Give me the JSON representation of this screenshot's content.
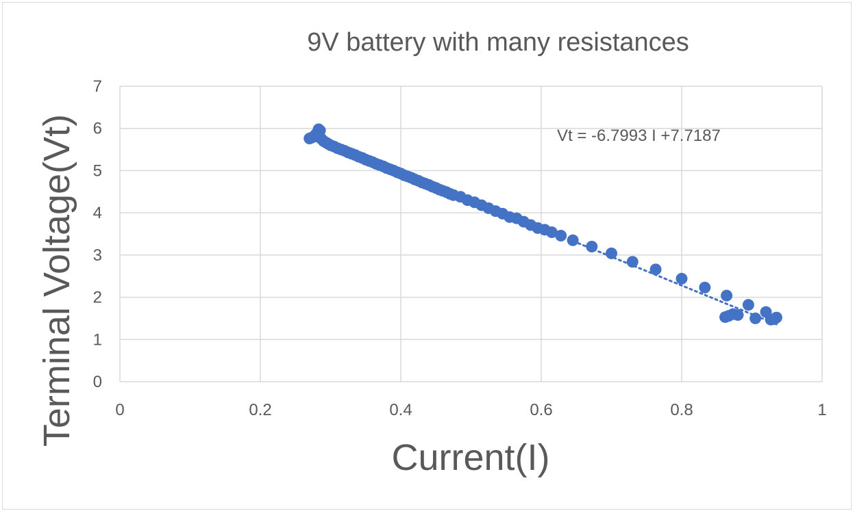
{
  "chart_data": {
    "type": "scatter",
    "title": "9V battery with many resistances",
    "xlabel": "Current(I)",
    "ylabel": "Terminal Voltage(Vt)",
    "xlim": [
      0,
      1
    ],
    "ylim": [
      0,
      7
    ],
    "x_ticks": [
      "0",
      "0.2",
      "0.4",
      "0.6",
      "0.8",
      "1"
    ],
    "y_ticks": [
      "0",
      "1",
      "2",
      "3",
      "4",
      "5",
      "6",
      "7"
    ],
    "grid": true,
    "legend": "none",
    "marker_color": "#4472c4",
    "trendline": {
      "type": "linear",
      "style": "dotted",
      "slope": -6.7993,
      "intercept": 7.7187,
      "x_range": [
        0.27,
        0.935
      ],
      "equation_label": "Vt = -6.7993 I +7.7187"
    },
    "series": [
      {
        "x": [
          0.27,
          0.273,
          0.276,
          0.279,
          0.282,
          0.283,
          0.285,
          0.287,
          0.29,
          0.293,
          0.296,
          0.3,
          0.305,
          0.31,
          0.315,
          0.32,
          0.325,
          0.33,
          0.335,
          0.34,
          0.345,
          0.35,
          0.355,
          0.36,
          0.365,
          0.37,
          0.375,
          0.38,
          0.385,
          0.39,
          0.395,
          0.4,
          0.405,
          0.41,
          0.415,
          0.42,
          0.425,
          0.43,
          0.435,
          0.44,
          0.445,
          0.45,
          0.455,
          0.46,
          0.465,
          0.47,
          0.475,
          0.485,
          0.495,
          0.505,
          0.515,
          0.525,
          0.535,
          0.545,
          0.555,
          0.565,
          0.575,
          0.585,
          0.595,
          0.605,
          0.615,
          0.628,
          0.645,
          0.672,
          0.7,
          0.73,
          0.763,
          0.8,
          0.833,
          0.864,
          0.862,
          0.867,
          0.873,
          0.88,
          0.895,
          0.905,
          0.92,
          0.927,
          0.932,
          0.935
        ],
        "y": [
          5.76,
          5.78,
          5.8,
          5.86,
          5.92,
          5.98,
          5.95,
          5.75,
          5.7,
          5.67,
          5.64,
          5.6,
          5.57,
          5.53,
          5.5,
          5.47,
          5.43,
          5.4,
          5.37,
          5.33,
          5.3,
          5.26,
          5.23,
          5.2,
          5.16,
          5.13,
          5.1,
          5.06,
          5.03,
          5.0,
          4.96,
          4.93,
          4.89,
          4.86,
          4.83,
          4.79,
          4.76,
          4.72,
          4.69,
          4.66,
          4.62,
          4.59,
          4.55,
          4.52,
          4.49,
          4.45,
          4.42,
          4.38,
          4.3,
          4.25,
          4.18,
          4.11,
          4.04,
          3.98,
          3.9,
          3.87,
          3.79,
          3.71,
          3.64,
          3.6,
          3.54,
          3.46,
          3.35,
          3.2,
          3.04,
          2.84,
          2.66,
          2.44,
          2.23,
          2.04,
          1.53,
          1.56,
          1.6,
          1.58,
          1.82,
          1.5,
          1.65,
          1.47,
          1.48,
          1.52
        ]
      }
    ]
  }
}
